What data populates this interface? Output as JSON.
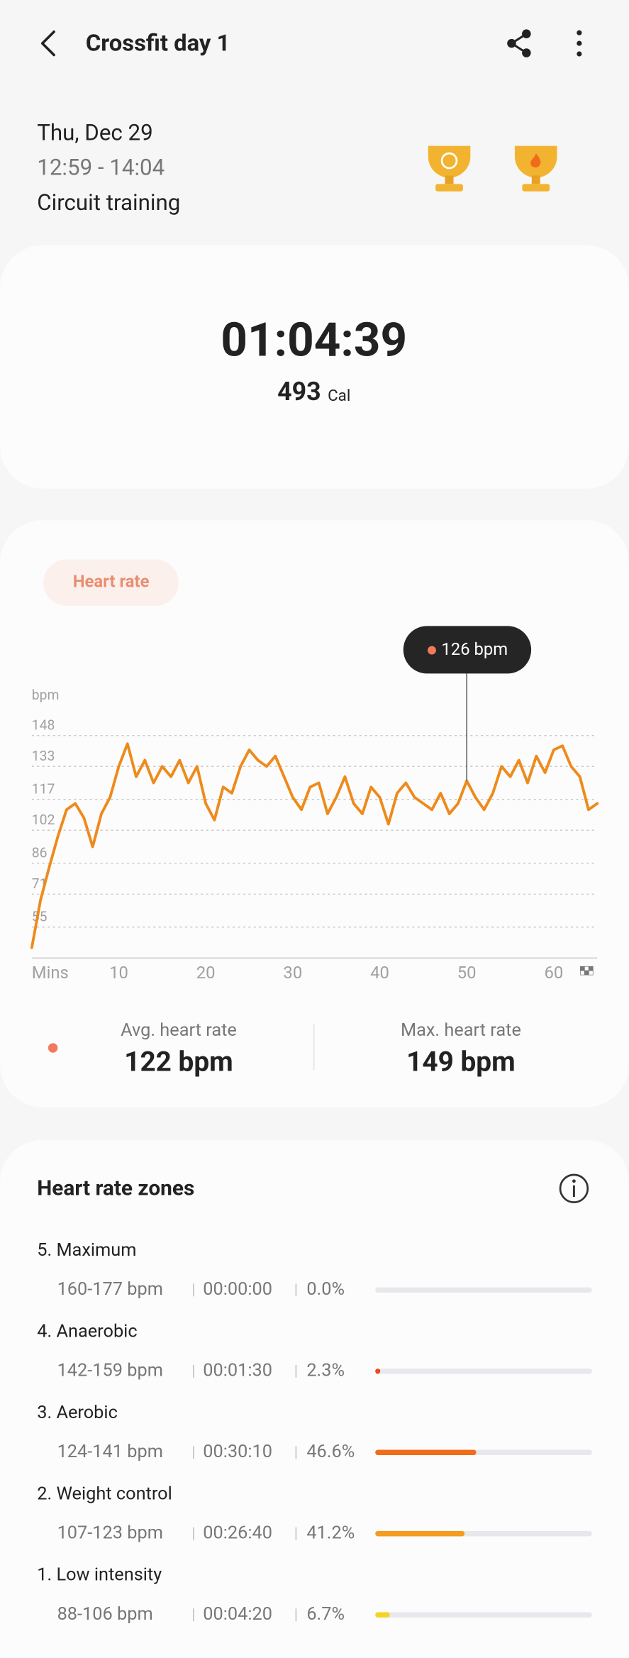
{
  "header": {
    "title": "Crossfit day 1"
  },
  "session": {
    "date": "Thu, Dec 29",
    "time": "12:59 - 14:04",
    "activity": "Circuit training"
  },
  "summary": {
    "duration": "01:04:39",
    "calories": "493",
    "calories_unit": "Cal"
  },
  "chart_data": {
    "type": "line",
    "y_label": "bpm",
    "x_label": "Mins",
    "x": [
      0,
      1,
      2,
      3,
      4,
      5,
      6,
      7,
      8,
      9,
      10,
      11,
      12,
      13,
      14,
      15,
      16,
      17,
      18,
      19,
      20,
      21,
      22,
      23,
      24,
      25,
      26,
      27,
      28,
      29,
      30,
      31,
      32,
      33,
      34,
      35,
      36,
      37,
      38,
      39,
      40,
      41,
      42,
      43,
      44,
      45,
      46,
      47,
      48,
      49,
      50,
      51,
      52,
      53,
      54,
      55,
      56,
      57,
      58,
      59,
      60,
      61,
      62,
      63,
      64,
      65
    ],
    "series": [
      {
        "name": "Heart rate",
        "color": "#ee8a1c",
        "values": [
          45,
          68,
          84,
          99,
          112,
          115,
          108,
          94,
          110,
          118,
          133,
          144,
          128,
          136,
          125,
          133,
          128,
          136,
          125,
          133,
          115,
          107,
          123,
          120,
          133,
          141,
          136,
          133,
          138,
          128,
          118,
          112,
          123,
          125,
          110,
          118,
          128,
          115,
          110,
          123,
          118,
          105,
          120,
          125,
          118,
          115,
          112,
          120,
          110,
          115,
          126,
          118,
          112,
          120,
          133,
          128,
          136,
          125,
          138,
          130,
          141,
          143,
          133,
          128,
          112,
          115
        ]
      }
    ],
    "xlim": [
      0,
      65
    ],
    "ylim": [
      40,
      156
    ],
    "xticks": [
      10,
      20,
      30,
      40,
      50,
      60
    ],
    "yticks": [
      148,
      133,
      117,
      102,
      86,
      71,
      55
    ],
    "grid": true,
    "annotation": {
      "x": 50,
      "value": 126,
      "label": "126 bpm"
    }
  },
  "stats": [
    {
      "label": "Avg. heart rate",
      "value": "122 bpm"
    },
    {
      "label": "Max. heart rate",
      "value": "149 bpm"
    }
  ],
  "zones": {
    "title": "Heart rate zones",
    "rows": [
      {
        "name": "5. Maximum",
        "range": "160-177 bpm",
        "time": "00:00:00",
        "percent": 0.0,
        "percent_label": "0.0%",
        "color": "#e23c1b"
      },
      {
        "name": "4. Anaerobic",
        "range": "142-159 bpm",
        "time": "00:01:30",
        "percent": 2.3,
        "percent_label": "2.3%",
        "color": "#e8491d"
      },
      {
        "name": "3. Aerobic",
        "range": "124-141 bpm",
        "time": "00:30:10",
        "percent": 46.6,
        "percent_label": "46.6%",
        "color": "#ef6c1a"
      },
      {
        "name": "2. Weight control",
        "range": "107-123 bpm",
        "time": "00:26:40",
        "percent": 41.2,
        "percent_label": "41.2%",
        "color": "#f39c1f"
      },
      {
        "name": "1. Low intensity",
        "range": "88-106 bpm",
        "time": "00:04:20",
        "percent": 6.7,
        "percent_label": "6.7%",
        "color": "#f5d422"
      }
    ]
  }
}
